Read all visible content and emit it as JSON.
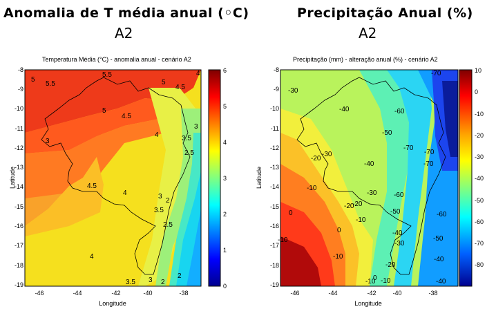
{
  "panels": [
    {
      "headline": "Anomalia de T média anual (◦C)",
      "scenario": "A2",
      "plot_title": "Temperatura Média (°C) - anomalia anual - cenário A2",
      "xlabel": "Longitude",
      "ylabel": "Latitude",
      "x_ticks": [
        "-46",
        "-44",
        "-42",
        "-40",
        "-38"
      ],
      "y_ticks": [
        "-8",
        "-9",
        "-10",
        "-11",
        "-12",
        "-13",
        "-14",
        "-15",
        "-16",
        "-17",
        "-18",
        "-19"
      ],
      "colorbar": {
        "min": 0,
        "max": 6,
        "ticks": [
          "6",
          "5",
          "4",
          "3",
          "2",
          "1",
          "0"
        ]
      },
      "contour_labels": [
        "5",
        "5.5",
        "5.5",
        "5",
        "4",
        "4.5",
        "5",
        "4.5",
        "4",
        "3",
        "3.5",
        "3",
        "2.5",
        "4.5",
        "4",
        "3",
        "3.5",
        "2",
        "2.5",
        "4",
        "3.5",
        "3",
        "2",
        "2"
      ]
    },
    {
      "headline": "Precipitação Anual (%)",
      "scenario": "A2",
      "plot_title": "Precipitação (mm) - alteração anual (%) - cenário A2",
      "xlabel": "Longitude",
      "ylabel": "Latitude",
      "x_ticks": [
        "-46",
        "-44",
        "-42",
        "-40",
        "-38"
      ],
      "y_ticks": [
        "-8",
        "-9",
        "-10",
        "-11",
        "-12",
        "-13",
        "-14",
        "-15",
        "-16",
        "-17",
        "-18",
        "-19"
      ],
      "colorbar": {
        "min": -90,
        "max": 10,
        "ticks": [
          "10",
          "0",
          "-10",
          "-20",
          "-30",
          "-40",
          "-50",
          "-60",
          "-70",
          "-80"
        ]
      },
      "contour_labels": [
        "-30",
        "-70",
        "-40",
        "-60",
        "-50",
        "-70",
        "-70",
        "-20",
        "-30",
        "-40",
        "-70",
        "-10",
        "-30",
        "-60",
        "-20",
        "-20",
        "-50",
        "-60",
        "0",
        "-10",
        "-40",
        "0",
        "-10",
        "-30",
        "-50",
        "-10",
        "-20",
        "-40",
        "-10",
        "-10",
        "0",
        "-40"
      ]
    }
  ]
}
